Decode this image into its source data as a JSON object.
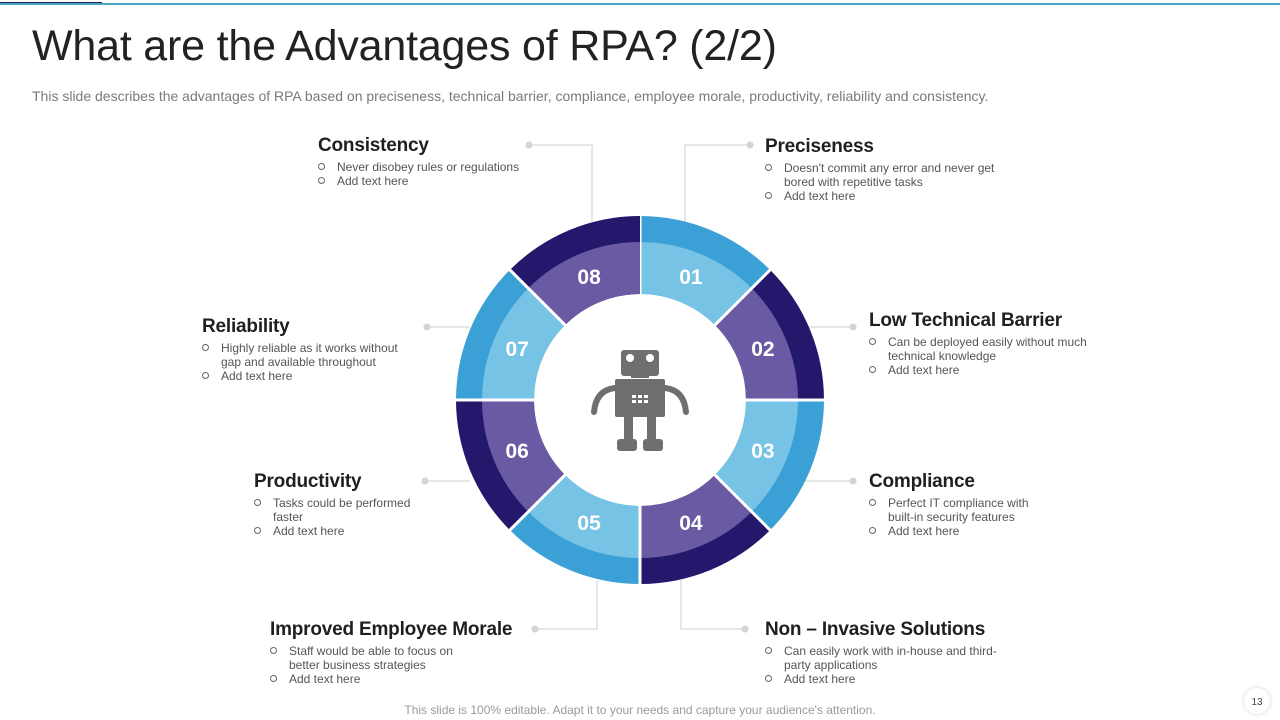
{
  "header": {
    "title": "What are the Advantages of RPA? (2/2)",
    "subtitle": "This slide describes the advantages of RPA based on preciseness, technical barrier, compliance, employee morale, productivity, reliability and consistency."
  },
  "colors": {
    "light_blue": "#3aa0d5",
    "dark_navy": "#23186b",
    "inner_light": "#77c3e6",
    "inner_purple": "#6a5aa4",
    "robot": "#6f6f6f"
  },
  "center_icon": "robot-icon",
  "diagram": {
    "segments": [
      "01",
      "02",
      "03",
      "04",
      "05",
      "06",
      "07",
      "08"
    ],
    "items": [
      {
        "id": "01",
        "title": "Preciseness",
        "bullets": [
          "Doesn't commit any error and never get bored with repetitive tasks",
          "Add text here"
        ]
      },
      {
        "id": "02",
        "title": "Low Technical Barrier",
        "bullets": [
          "Can be deployed easily without much technical knowledge",
          "Add text here"
        ]
      },
      {
        "id": "03",
        "title": "Compliance",
        "bullets": [
          "Perfect IT compliance with built-in security features",
          "Add text here"
        ]
      },
      {
        "id": "04",
        "title": "Non – Invasive Solutions",
        "bullets": [
          "Can easily work with in-house and third-party applications",
          "Add text here"
        ]
      },
      {
        "id": "05",
        "title": "Improved Employee Morale",
        "bullets": [
          "Staff would be able to focus on better business strategies",
          "Add text here"
        ]
      },
      {
        "id": "06",
        "title": "Productivity",
        "bullets": [
          "Tasks could be performed faster",
          "Add text here"
        ]
      },
      {
        "id": "07",
        "title": "Reliability",
        "bullets": [
          "Highly reliable as it works without gap and available throughout",
          "Add text here"
        ]
      },
      {
        "id": "08",
        "title": "Consistency",
        "bullets": [
          "Never disobey rules or regulations",
          "Add text here"
        ]
      }
    ]
  },
  "footer": {
    "note": "This slide is 100% editable. Adapt it to your needs and capture your audience's attention.",
    "page": "13"
  }
}
